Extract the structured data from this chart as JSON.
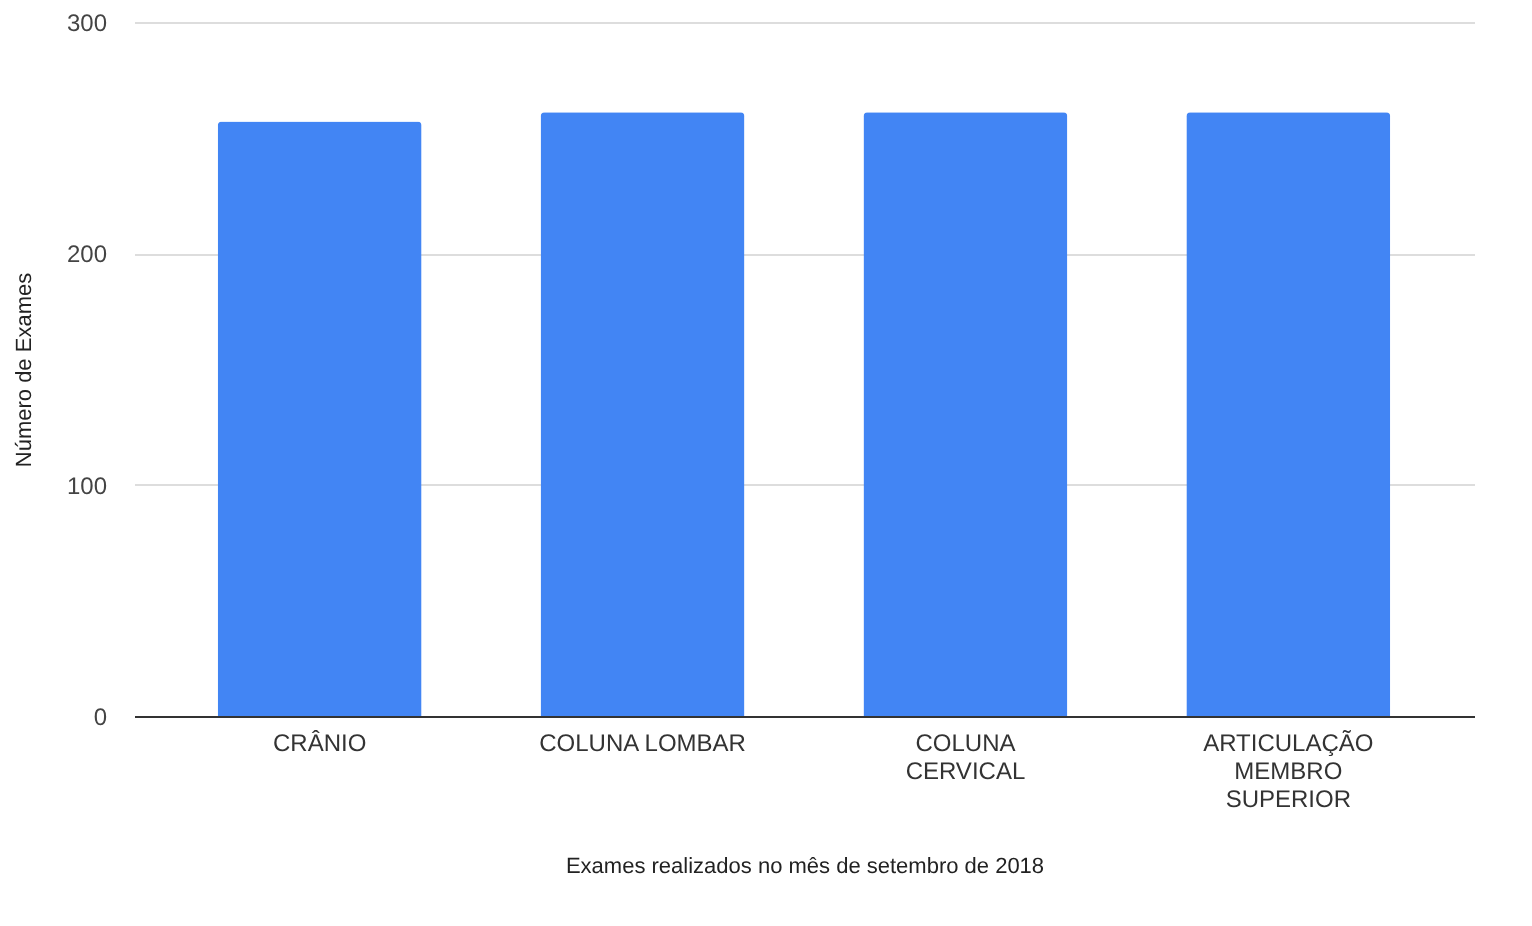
{
  "chart_data": {
    "type": "bar",
    "xlabel": "Exames realizados no mês de setembro de 2018",
    "ylabel": "Número de Exames",
    "categories": [
      "CRÂNIO",
      "COLUNA LOMBAR",
      "COLUNA CERVICAL",
      "ARTICULAÇÃO MEMBRO SUPERIOR"
    ],
    "values": [
      257,
      261,
      261,
      261
    ],
    "color": "#4285f4",
    "ylim": [
      0,
      300
    ],
    "yticks": [
      0,
      100,
      200,
      300
    ],
    "grid": "y"
  }
}
